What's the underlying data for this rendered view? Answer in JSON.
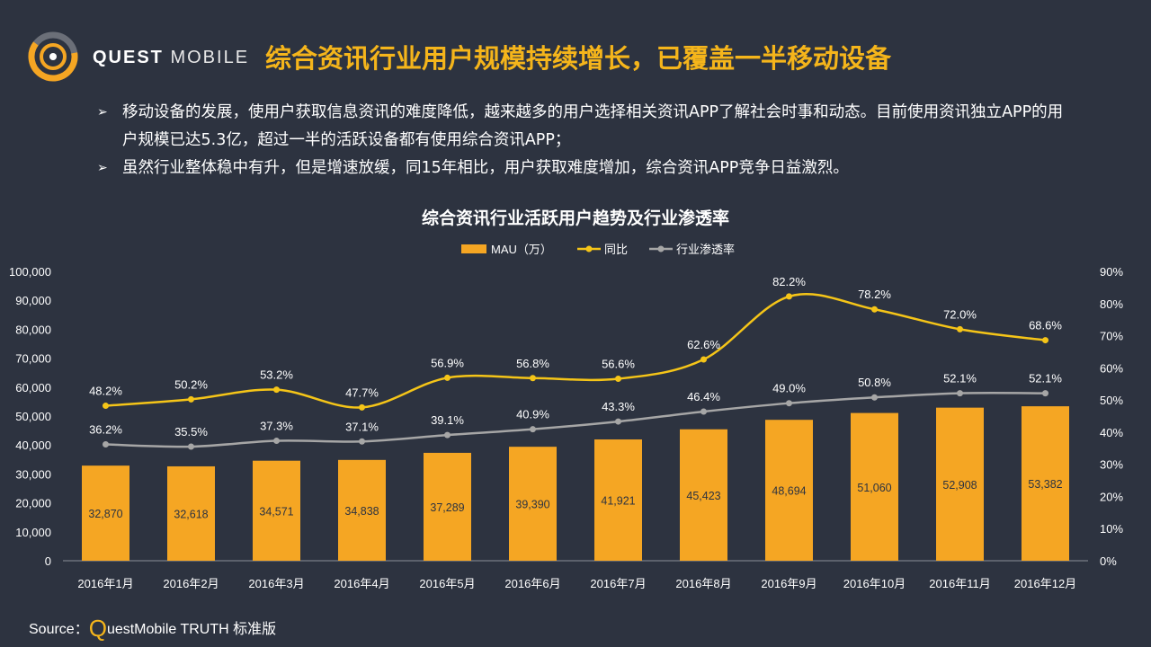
{
  "brand": {
    "quest": "QUEST",
    "mobile": "MOBILE"
  },
  "page_title": "综合资讯行业用户规模持续增长，已覆盖一半移动设备",
  "bullets": [
    "移动设备的发展，使用户获取信息资讯的难度降低，越来越多的用户选择相关资讯APP了解社会时事和动态。目前使用资讯独立APP的用户规模已达5.3亿，超过一半的活跃设备都有使用综合资讯APP；",
    "虽然行业整体稳中有升，但是增速放缓，同15年相比，用户获取难度增加，综合资讯APP竞争日益激烈。"
  ],
  "source": {
    "prefix": "Source：",
    "q": "Q",
    "rest": "uestMobile TRUTH 标准版"
  },
  "colors": {
    "background": "#2d3340",
    "bar": "#f5a623",
    "yoy_line": "#f5c518",
    "penetration_line": "#a6a6a6",
    "accent": "#f5b51b"
  },
  "chart_data": {
    "type": "bar",
    "title": "综合资讯行业活跃用户趋势及行业渗透率",
    "categories": [
      "2016年1月",
      "2016年2月",
      "2016年3月",
      "2016年4月",
      "2016年5月",
      "2016年6月",
      "2016年7月",
      "2016年8月",
      "2016年9月",
      "2016年10月",
      "2016年11月",
      "2016年12月"
    ],
    "series": [
      {
        "name": "MAU（万）",
        "type": "bar",
        "axis": "left",
        "values": [
          32870,
          32618,
          34571,
          34838,
          37289,
          39390,
          41921,
          45423,
          48694,
          51060,
          52908,
          53382
        ],
        "labels": [
          "32,870",
          "32,618",
          "34,571",
          "34,838",
          "37,289",
          "39,390",
          "41,921",
          "45,423",
          "48,694",
          "51,060",
          "52,908",
          "53,382"
        ]
      },
      {
        "name": "同比",
        "type": "line",
        "axis": "right",
        "values": [
          48.2,
          50.2,
          53.2,
          47.7,
          56.9,
          56.8,
          56.6,
          62.6,
          82.2,
          78.2,
          72.0,
          68.6
        ],
        "labels": [
          "48.2%",
          "50.2%",
          "53.2%",
          "47.7%",
          "56.9%",
          "56.8%",
          "56.6%",
          "62.6%",
          "82.2%",
          "78.2%",
          "72.0%",
          "68.6%"
        ]
      },
      {
        "name": "行业渗透率",
        "type": "line",
        "axis": "right",
        "values": [
          36.2,
          35.5,
          37.3,
          37.1,
          39.1,
          40.9,
          43.3,
          46.4,
          49.0,
          50.8,
          52.1,
          52.1
        ],
        "labels": [
          "36.2%",
          "35.5%",
          "37.3%",
          "37.1%",
          "39.1%",
          "40.9%",
          "43.3%",
          "46.4%",
          "49.0%",
          "50.8%",
          "52.1%",
          "52.1%"
        ]
      }
    ],
    "y_left": {
      "min": 0,
      "max": 100000,
      "ticks": [
        "0",
        "10,000",
        "20,000",
        "30,000",
        "40,000",
        "50,000",
        "60,000",
        "70,000",
        "80,000",
        "90,000",
        "100,000"
      ]
    },
    "y_right": {
      "min": 0,
      "max": 90,
      "ticks": [
        "0%",
        "10%",
        "20%",
        "30%",
        "40%",
        "50%",
        "60%",
        "70%",
        "80%",
        "90%"
      ]
    },
    "legend_position": "top",
    "grid": false
  }
}
